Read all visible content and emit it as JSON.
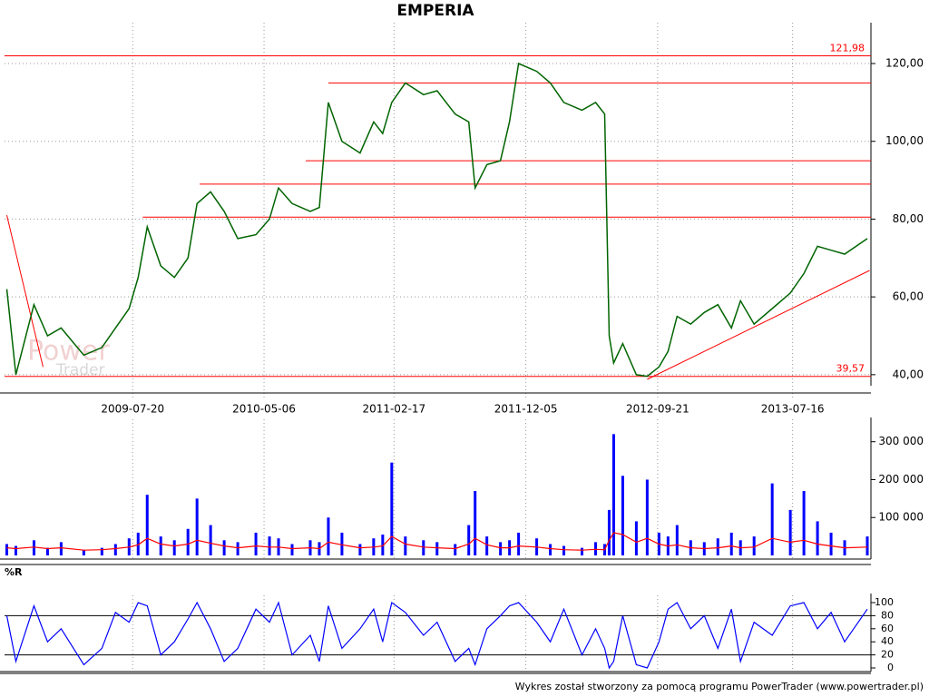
{
  "chart_data": [
    {
      "type": "line",
      "title": "EMPERIA",
      "grid": true,
      "xlim": [
        "2008-10-10",
        "2014-01-05"
      ],
      "xticks": [
        "2009-07-20",
        "2010-05-06",
        "2011-02-17",
        "2011-12-05",
        "2012-09-21",
        "2013-07-16"
      ],
      "ylim": [
        35.3,
        130.5
      ],
      "yticks": [
        {
          "value": 40,
          "label": "40,00"
        },
        {
          "value": 60,
          "label": "60,00"
        },
        {
          "value": 80,
          "label": "80,00"
        },
        {
          "value": 100,
          "label": "100,00"
        },
        {
          "value": 120,
          "label": "120,00"
        }
      ],
      "x": [
        "2008-10-15",
        "2008-11-04",
        "2008-12-14",
        "2009-01-13",
        "2009-02-12",
        "2009-04-03",
        "2009-05-13",
        "2009-06-12",
        "2009-07-12",
        "2009-08-01",
        "2009-08-21",
        "2009-09-20",
        "2009-10-20",
        "2009-11-19",
        "2009-12-09",
        "2010-01-08",
        "2010-02-07",
        "2010-03-09",
        "2010-04-18",
        "2010-05-18",
        "2010-06-07",
        "2010-07-07",
        "2010-08-16",
        "2010-09-05",
        "2010-09-25",
        "2010-10-25",
        "2010-12-04",
        "2011-01-03",
        "2011-01-23",
        "2011-02-12",
        "2011-03-14",
        "2011-04-23",
        "2011-05-23",
        "2011-07-02",
        "2011-08-01",
        "2011-08-15",
        "2011-09-10",
        "2011-10-10",
        "2011-10-30",
        "2011-11-19",
        "2011-12-29",
        "2012-01-28",
        "2012-02-27",
        "2012-04-07",
        "2012-05-07",
        "2012-05-27",
        "2012-06-06",
        "2012-06-16",
        "2012-07-06",
        "2012-08-05",
        "2012-08-29",
        "2012-09-24",
        "2012-10-14",
        "2012-11-03",
        "2012-12-03",
        "2013-01-02",
        "2013-02-01",
        "2013-03-03",
        "2013-03-23",
        "2013-04-22",
        "2013-06-01",
        "2013-07-11",
        "2013-08-10",
        "2013-09-09",
        "2013-10-09",
        "2013-11-08",
        "2013-12-28"
      ],
      "series": [
        {
          "color": "#006400",
          "values": [
            62,
            40,
            58,
            50,
            52,
            45,
            47,
            52,
            57,
            65,
            78,
            68,
            65,
            70,
            84,
            87,
            82,
            75,
            76,
            80,
            88,
            84,
            82,
            83,
            110,
            100,
            97,
            105,
            102,
            110,
            115,
            112,
            113,
            107,
            105,
            88,
            94,
            95,
            105,
            120,
            118,
            115,
            110,
            108,
            110,
            107,
            50,
            43,
            48,
            40,
            39.6,
            42,
            46,
            55,
            53,
            56,
            58,
            52,
            59,
            53,
            57,
            61,
            66,
            73,
            72,
            71,
            75
          ]
        }
      ],
      "level_color": "#ff0000",
      "levels": [
        {
          "value": 121.98,
          "label": "121,98"
        },
        {
          "value": 115,
          "start": "2010-09-25"
        },
        {
          "value": 95,
          "start": "2010-08-06"
        },
        {
          "value": 89,
          "start": "2009-12-15"
        },
        {
          "value": 80.5,
          "start": "2009-08-11"
        },
        {
          "value": 39.57,
          "label": "39,57"
        }
      ],
      "trendlines": [
        {
          "x": [
            "2008-10-15",
            "2009-01-03"
          ],
          "values": [
            81,
            42
          ]
        },
        {
          "x": [
            "2012-08-29",
            "2014-01-02"
          ],
          "values": [
            38.8,
            66.8
          ]
        }
      ]
    },
    {
      "type": "bar",
      "xlim": [
        "2008-10-10",
        "2014-01-05"
      ],
      "ylim": [
        0,
        340000
      ],
      "yticks": [
        {
          "value": 100000,
          "label": "100 000"
        },
        {
          "value": 200000,
          "label": "200 000"
        },
        {
          "value": 300000,
          "label": "300 000"
        }
      ],
      "x": [
        "2008-10-15",
        "2008-11-04",
        "2008-12-14",
        "2009-01-13",
        "2009-02-12",
        "2009-04-03",
        "2009-05-13",
        "2009-06-12",
        "2009-07-12",
        "2009-08-01",
        "2009-08-21",
        "2009-09-20",
        "2009-10-20",
        "2009-11-19",
        "2009-12-09",
        "2010-01-08",
        "2010-02-07",
        "2010-03-09",
        "2010-04-18",
        "2010-05-18",
        "2010-06-07",
        "2010-07-07",
        "2010-08-16",
        "2010-09-05",
        "2010-09-25",
        "2010-10-25",
        "2010-12-04",
        "2011-01-03",
        "2011-01-23",
        "2011-02-12",
        "2011-03-14",
        "2011-04-23",
        "2011-05-23",
        "2011-07-02",
        "2011-08-01",
        "2011-08-15",
        "2011-09-10",
        "2011-10-10",
        "2011-10-30",
        "2011-11-19",
        "2011-12-29",
        "2012-01-28",
        "2012-02-27",
        "2012-04-07",
        "2012-05-07",
        "2012-05-27",
        "2012-06-06",
        "2012-06-16",
        "2012-07-06",
        "2012-08-05",
        "2012-08-29",
        "2012-09-24",
        "2012-10-14",
        "2012-11-03",
        "2012-12-03",
        "2013-01-02",
        "2013-02-01",
        "2013-03-03",
        "2013-03-23",
        "2013-04-22",
        "2013-06-01",
        "2013-07-11",
        "2013-08-10",
        "2013-09-09",
        "2013-10-09",
        "2013-11-08",
        "2013-12-28"
      ],
      "series": [
        {
          "color": "#0000ff",
          "values": [
            30000,
            25000,
            40000,
            20000,
            35000,
            15000,
            20000,
            30000,
            45000,
            60000,
            160000,
            50000,
            40000,
            70000,
            150000,
            80000,
            40000,
            35000,
            60000,
            50000,
            45000,
            30000,
            40000,
            35000,
            100000,
            60000,
            30000,
            45000,
            55000,
            245000,
            50000,
            40000,
            35000,
            30000,
            80000,
            170000,
            50000,
            35000,
            40000,
            60000,
            45000,
            30000,
            25000,
            20000,
            35000,
            30000,
            120000,
            320000,
            210000,
            90000,
            200000,
            60000,
            50000,
            80000,
            40000,
            35000,
            45000,
            60000,
            40000,
            50000,
            190000,
            120000,
            170000,
            90000,
            60000,
            40000,
            50000
          ]
        },
        {
          "color": "#ff0000",
          "values": [
            20000,
            18000,
            22000,
            18000,
            20000,
            14000,
            15000,
            18000,
            22000,
            28000,
            45000,
            30000,
            25000,
            30000,
            40000,
            32000,
            25000,
            20000,
            25000,
            22000,
            22000,
            18000,
            20000,
            18000,
            35000,
            28000,
            20000,
            22000,
            25000,
            50000,
            30000,
            22000,
            20000,
            18000,
            30000,
            45000,
            28000,
            20000,
            20000,
            25000,
            22000,
            18000,
            15000,
            14000,
            16000,
            15000,
            40000,
            60000,
            55000,
            35000,
            45000,
            30000,
            25000,
            28000,
            20000,
            18000,
            20000,
            25000,
            20000,
            22000,
            45000,
            35000,
            40000,
            30000,
            25000,
            20000,
            22000
          ]
        }
      ]
    },
    {
      "type": "line",
      "title": "%R",
      "xlim": [
        "2008-10-10",
        "2014-01-05"
      ],
      "ylim": [
        0,
        100
      ],
      "yticks": [
        0,
        20,
        40,
        60,
        80,
        100
      ],
      "reference_lines": [
        20,
        80
      ],
      "x": [
        "2008-10-15",
        "2008-11-04",
        "2008-12-14",
        "2009-01-13",
        "2009-02-12",
        "2009-04-03",
        "2009-05-13",
        "2009-06-12",
        "2009-07-12",
        "2009-08-01",
        "2009-08-21",
        "2009-09-20",
        "2009-10-20",
        "2009-11-19",
        "2009-12-09",
        "2010-01-08",
        "2010-02-07",
        "2010-03-09",
        "2010-04-18",
        "2010-05-18",
        "2010-06-07",
        "2010-07-07",
        "2010-08-16",
        "2010-09-05",
        "2010-09-25",
        "2010-10-25",
        "2010-12-04",
        "2011-01-03",
        "2011-01-23",
        "2011-02-12",
        "2011-03-14",
        "2011-04-23",
        "2011-05-23",
        "2011-07-02",
        "2011-08-01",
        "2011-08-15",
        "2011-09-10",
        "2011-10-10",
        "2011-10-30",
        "2011-11-19",
        "2011-12-29",
        "2012-01-28",
        "2012-02-27",
        "2012-04-07",
        "2012-05-07",
        "2012-05-27",
        "2012-06-06",
        "2012-06-16",
        "2012-07-06",
        "2012-08-05",
        "2012-08-29",
        "2012-09-24",
        "2012-10-14",
        "2012-11-03",
        "2012-12-03",
        "2013-01-02",
        "2013-02-01",
        "2013-03-03",
        "2013-03-23",
        "2013-04-22",
        "2013-06-01",
        "2013-07-11",
        "2013-08-10",
        "2013-09-09",
        "2013-10-09",
        "2013-11-08",
        "2013-12-28"
      ],
      "series": [
        {
          "color": "#0000ff",
          "values": [
            80,
            10,
            95,
            40,
            60,
            5,
            30,
            85,
            70,
            100,
            95,
            20,
            40,
            75,
            100,
            60,
            10,
            30,
            90,
            70,
            100,
            20,
            50,
            10,
            95,
            30,
            60,
            90,
            40,
            100,
            85,
            50,
            70,
            10,
            30,
            5,
            60,
            80,
            95,
            100,
            70,
            40,
            90,
            20,
            60,
            30,
            0,
            10,
            80,
            5,
            0,
            40,
            90,
            100,
            60,
            80,
            30,
            90,
            10,
            70,
            50,
            95,
            100,
            60,
            85,
            40,
            90
          ]
        }
      ]
    }
  ],
  "watermark": [
    "Power",
    "Trader"
  ],
  "footer": "Wykres został stworzony za pomocą programu PowerTrader (www.powertrader.pl)"
}
